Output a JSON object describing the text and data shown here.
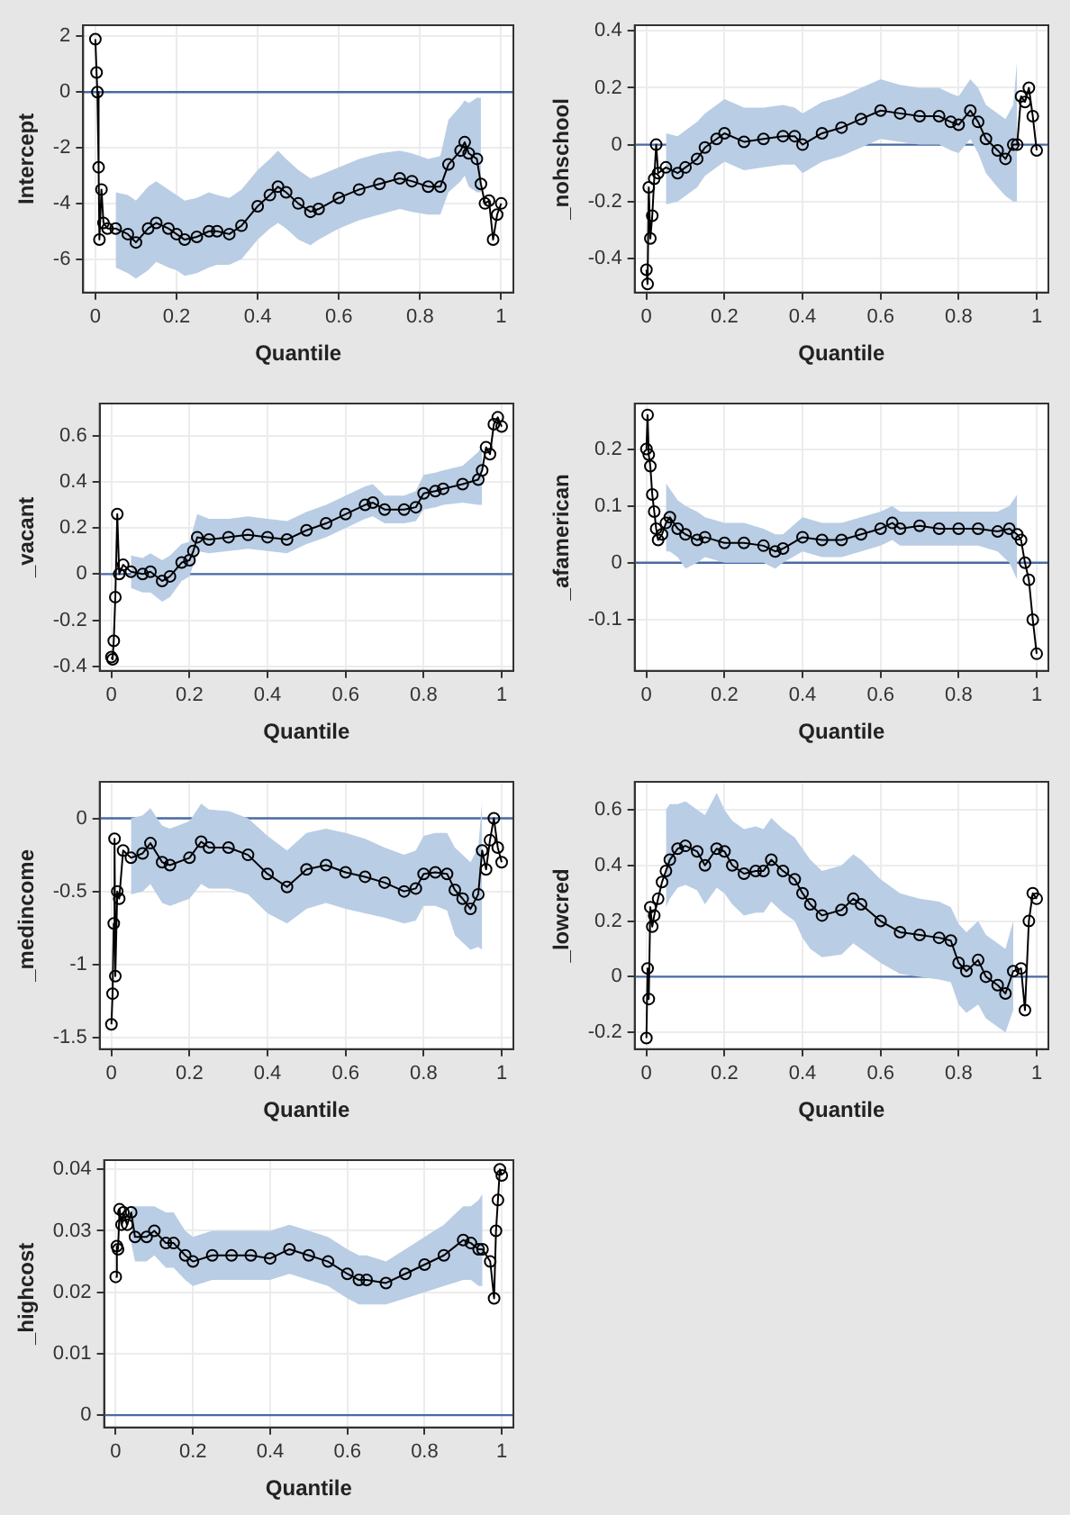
{
  "chart_data": [
    {
      "type": "line",
      "xlabel": "Quantile",
      "ylabel": "Intercept",
      "xlim": [
        -0.03,
        1.03
      ],
      "xticks": [
        0,
        0.2,
        0.4,
        0.6,
        0.8,
        1
      ],
      "ylim": [
        -7.2,
        2.4
      ],
      "yticks": [
        -6,
        -4,
        -2,
        0,
        2
      ],
      "grid": true,
      "marker": "circle",
      "line_style": "solid",
      "ref_lines": [
        {
          "axis": "y",
          "value": 0,
          "color": "#4a6aa5"
        }
      ],
      "x": [
        0,
        0.003,
        0.005,
        0.008,
        0.01,
        0.015,
        0.02,
        0.03,
        0.05,
        0.08,
        0.1,
        0.13,
        0.15,
        0.18,
        0.2,
        0.22,
        0.25,
        0.28,
        0.3,
        0.33,
        0.36,
        0.4,
        0.43,
        0.45,
        0.47,
        0.5,
        0.53,
        0.55,
        0.6,
        0.65,
        0.7,
        0.75,
        0.78,
        0.82,
        0.85,
        0.87,
        0.9,
        0.91,
        0.92,
        0.94,
        0.95,
        0.96,
        0.97,
        0.98,
        0.99,
        1.0
      ],
      "series": [
        {
          "color": "#000000",
          "values": [
            1.9,
            0.7,
            0,
            -2.7,
            -5.3,
            -3.5,
            -4.7,
            -4.9,
            -4.9,
            -5.1,
            -5.4,
            -4.9,
            -4.7,
            -4.9,
            -5.1,
            -5.3,
            -5.2,
            -5.0,
            -5.0,
            -5.1,
            -4.8,
            -4.1,
            -3.7,
            -3.4,
            -3.6,
            -4.0,
            -4.3,
            -4.2,
            -3.8,
            -3.5,
            -3.3,
            -3.1,
            -3.2,
            -3.4,
            -3.4,
            -2.6,
            -2.1,
            -1.8,
            -2.2,
            -2.4,
            -3.3,
            -4.0,
            -3.9,
            -5.3,
            -4.4,
            -4.0
          ],
          "lower": [
            null,
            null,
            null,
            null,
            null,
            null,
            null,
            null,
            -6.3,
            -6.5,
            -6.7,
            -6.4,
            -6.1,
            -6.3,
            -6.4,
            -6.6,
            -6.5,
            -6.3,
            -6.2,
            -6.2,
            -6.0,
            -5.3,
            -4.9,
            -4.7,
            -4.9,
            -5.3,
            -5.5,
            -5.3,
            -4.9,
            -4.6,
            -4.4,
            -4.2,
            -4.3,
            -4.4,
            -4.4,
            -3.6,
            -3.2,
            -3.0,
            -3.4,
            -3.6,
            -3.6,
            null,
            null,
            null,
            null,
            null
          ],
          "upper": [
            null,
            null,
            null,
            null,
            null,
            null,
            null,
            null,
            -3.6,
            -3.7,
            -3.9,
            -3.4,
            -3.2,
            -3.5,
            -3.7,
            -3.9,
            -3.8,
            -3.6,
            -3.7,
            -3.8,
            -3.5,
            -2.8,
            -2.4,
            -2.1,
            -2.4,
            -2.8,
            -3.1,
            -3.0,
            -2.7,
            -2.4,
            -2.2,
            -2.1,
            -2.2,
            -2.4,
            -2.3,
            -1.0,
            -0.5,
            -0.3,
            -0.4,
            -0.2,
            -0.2,
            null,
            null,
            null,
            null,
            null
          ]
        }
      ]
    },
    {
      "type": "line",
      "xlabel": "Quantile",
      "ylabel": "_nohschool",
      "xlim": [
        -0.03,
        1.03
      ],
      "xticks": [
        0,
        0.2,
        0.4,
        0.6,
        0.8,
        1
      ],
      "ylim": [
        -0.52,
        0.42
      ],
      "yticks": [
        -0.4,
        -0.2,
        0,
        0.2,
        0.4
      ],
      "grid": true,
      "marker": "circle",
      "line_style": "solid",
      "ref_lines": [
        {
          "axis": "y",
          "value": 0,
          "color": "#4a6aa5"
        }
      ],
      "x": [
        0,
        0.003,
        0.006,
        0.01,
        0.015,
        0.02,
        0.025,
        0.03,
        0.05,
        0.08,
        0.1,
        0.13,
        0.15,
        0.18,
        0.2,
        0.25,
        0.3,
        0.35,
        0.38,
        0.4,
        0.45,
        0.5,
        0.55,
        0.6,
        0.65,
        0.7,
        0.75,
        0.78,
        0.8,
        0.83,
        0.85,
        0.87,
        0.9,
        0.92,
        0.94,
        0.95,
        0.96,
        0.97,
        0.98,
        0.99,
        1.0
      ],
      "series": [
        {
          "color": "#000000",
          "values": [
            -0.44,
            -0.49,
            -0.15,
            -0.33,
            -0.25,
            -0.12,
            0.0,
            -0.1,
            -0.08,
            -0.1,
            -0.08,
            -0.05,
            -0.01,
            0.02,
            0.04,
            0.01,
            0.02,
            0.03,
            0.03,
            0.0,
            0.04,
            0.06,
            0.09,
            0.12,
            0.11,
            0.1,
            0.1,
            0.08,
            0.07,
            0.12,
            0.08,
            0.02,
            -0.02,
            -0.05,
            0.0,
            0.0,
            0.17,
            0.15,
            0.2,
            0.1,
            -0.02
          ],
          "lower": [
            null,
            null,
            null,
            null,
            null,
            null,
            null,
            null,
            -0.21,
            -0.2,
            -0.18,
            -0.15,
            -0.11,
            -0.08,
            -0.06,
            -0.09,
            -0.08,
            -0.07,
            -0.07,
            -0.1,
            -0.06,
            -0.04,
            -0.01,
            0.02,
            0.01,
            0.0,
            0.0,
            -0.02,
            -0.03,
            0.02,
            -0.03,
            -0.1,
            -0.15,
            -0.18,
            -0.2,
            -0.2,
            null,
            null,
            null,
            null,
            null
          ],
          "upper": [
            null,
            null,
            null,
            null,
            null,
            null,
            null,
            null,
            0.04,
            0.03,
            0.05,
            0.08,
            0.11,
            0.14,
            0.16,
            0.13,
            0.13,
            0.14,
            0.13,
            0.11,
            0.15,
            0.17,
            0.2,
            0.23,
            0.21,
            0.2,
            0.2,
            0.18,
            0.17,
            0.23,
            0.2,
            0.14,
            0.11,
            0.09,
            0.14,
            0.3,
            null,
            null,
            null,
            null,
            null
          ]
        }
      ]
    },
    {
      "type": "line",
      "xlabel": "Quantile",
      "ylabel": "_vacant",
      "xlim": [
        -0.03,
        1.03
      ],
      "xticks": [
        0,
        0.2,
        0.4,
        0.6,
        0.8,
        1
      ],
      "ylim": [
        -0.42,
        0.74
      ],
      "yticks": [
        -0.4,
        -0.2,
        0,
        0.2,
        0.4,
        0.6
      ],
      "grid": true,
      "marker": "circle",
      "line_style": "solid",
      "ref_lines": [
        {
          "axis": "y",
          "value": 0,
          "color": "#4a6aa5"
        }
      ],
      "x": [
        0,
        0.003,
        0.006,
        0.01,
        0.015,
        0.02,
        0.03,
        0.05,
        0.08,
        0.1,
        0.13,
        0.15,
        0.18,
        0.2,
        0.21,
        0.22,
        0.25,
        0.3,
        0.35,
        0.4,
        0.45,
        0.5,
        0.55,
        0.6,
        0.65,
        0.67,
        0.7,
        0.75,
        0.78,
        0.8,
        0.83,
        0.85,
        0.9,
        0.94,
        0.95,
        0.96,
        0.97,
        0.98,
        0.99,
        1.0
      ],
      "series": [
        {
          "color": "#000000",
          "values": [
            -0.36,
            -0.37,
            -0.29,
            -0.1,
            0.26,
            0.0,
            0.04,
            0.01,
            0.0,
            0.01,
            -0.03,
            -0.01,
            0.05,
            0.06,
            0.1,
            0.16,
            0.15,
            0.16,
            0.17,
            0.16,
            0.15,
            0.19,
            0.22,
            0.26,
            0.3,
            0.31,
            0.28,
            0.28,
            0.29,
            0.35,
            0.36,
            0.37,
            0.39,
            0.41,
            0.45,
            0.55,
            0.52,
            0.65,
            0.68,
            0.64
          ],
          "lower": [
            null,
            null,
            null,
            null,
            null,
            null,
            null,
            -0.06,
            -0.08,
            -0.08,
            -0.12,
            -0.1,
            -0.03,
            -0.01,
            0.04,
            0.1,
            0.09,
            0.1,
            0.11,
            0.1,
            0.09,
            0.13,
            0.16,
            0.2,
            0.24,
            0.25,
            0.22,
            0.22,
            0.23,
            0.28,
            0.29,
            0.3,
            0.31,
            0.3,
            0.3,
            null,
            null,
            null,
            null,
            null
          ],
          "upper": [
            null,
            null,
            null,
            null,
            null,
            null,
            null,
            0.08,
            0.07,
            0.09,
            0.06,
            0.08,
            0.13,
            0.14,
            0.2,
            0.26,
            0.24,
            0.24,
            0.25,
            0.24,
            0.23,
            0.27,
            0.3,
            0.34,
            0.38,
            0.39,
            0.34,
            0.34,
            0.36,
            0.43,
            0.44,
            0.45,
            0.47,
            0.53,
            0.56,
            null,
            null,
            null,
            null,
            null
          ]
        }
      ]
    },
    {
      "type": "line",
      "xlabel": "Quantile",
      "ylabel": "_afamerican",
      "xlim": [
        -0.03,
        1.03
      ],
      "xticks": [
        0,
        0.2,
        0.4,
        0.6,
        0.8,
        1
      ],
      "ylim": [
        -0.19,
        0.28
      ],
      "yticks": [
        -0.1,
        0,
        0.1,
        0.2
      ],
      "grid": true,
      "marker": "circle",
      "line_style": "solid",
      "ref_lines": [
        {
          "axis": "y",
          "value": 0,
          "color": "#4a6aa5"
        }
      ],
      "x": [
        0,
        0.003,
        0.006,
        0.01,
        0.015,
        0.02,
        0.025,
        0.03,
        0.04,
        0.05,
        0.06,
        0.08,
        0.1,
        0.13,
        0.15,
        0.2,
        0.25,
        0.3,
        0.33,
        0.35,
        0.4,
        0.45,
        0.5,
        0.55,
        0.6,
        0.63,
        0.65,
        0.7,
        0.75,
        0.8,
        0.85,
        0.9,
        0.93,
        0.95,
        0.96,
        0.97,
        0.98,
        0.99,
        1.0
      ],
      "series": [
        {
          "color": "#000000",
          "values": [
            0.2,
            0.26,
            0.19,
            0.17,
            0.12,
            0.09,
            0.06,
            0.04,
            0.05,
            0.07,
            0.08,
            0.06,
            0.05,
            0.04,
            0.045,
            0.035,
            0.035,
            0.03,
            0.02,
            0.025,
            0.045,
            0.04,
            0.04,
            0.05,
            0.06,
            0.07,
            0.06,
            0.065,
            0.06,
            0.06,
            0.06,
            0.055,
            0.06,
            0.05,
            0.04,
            0.0,
            -0.03,
            -0.1,
            -0.16
          ],
          "lower": [
            null,
            null,
            null,
            null,
            null,
            null,
            null,
            null,
            null,
            0.02,
            0.02,
            0.01,
            -0.01,
            0.0,
            0.01,
            0.0,
            0.0,
            0.0,
            -0.01,
            0.0,
            0.02,
            0.01,
            0.01,
            0.02,
            0.03,
            0.04,
            0.03,
            0.03,
            0.03,
            0.03,
            0.03,
            0.02,
            0.0,
            -0.03,
            null,
            null,
            null,
            null,
            null
          ],
          "upper": [
            null,
            null,
            null,
            null,
            null,
            null,
            null,
            null,
            null,
            0.14,
            0.13,
            0.11,
            0.1,
            0.09,
            0.08,
            0.07,
            0.07,
            0.06,
            0.05,
            0.05,
            0.08,
            0.07,
            0.07,
            0.08,
            0.09,
            0.1,
            0.09,
            0.09,
            0.09,
            0.09,
            0.09,
            0.09,
            0.1,
            0.12,
            null,
            null,
            null,
            null,
            null
          ]
        }
      ]
    },
    {
      "type": "line",
      "xlabel": "Quantile",
      "ylabel": "_medincome",
      "xlim": [
        -0.03,
        1.03
      ],
      "xticks": [
        0,
        0.2,
        0.4,
        0.6,
        0.8,
        1
      ],
      "ylim": [
        -1.58,
        0.25
      ],
      "yticks": [
        -1.5,
        -1,
        -0.5,
        0
      ],
      "grid": true,
      "marker": "circle",
      "line_style": "solid",
      "ref_lines": [
        {
          "axis": "y",
          "value": 0,
          "color": "#4a6aa5"
        }
      ],
      "x": [
        0,
        0.003,
        0.006,
        0.008,
        0.01,
        0.015,
        0.02,
        0.03,
        0.05,
        0.08,
        0.1,
        0.13,
        0.15,
        0.2,
        0.23,
        0.25,
        0.3,
        0.35,
        0.4,
        0.45,
        0.5,
        0.55,
        0.6,
        0.65,
        0.7,
        0.75,
        0.78,
        0.8,
        0.83,
        0.86,
        0.88,
        0.9,
        0.92,
        0.94,
        0.95,
        0.96,
        0.97,
        0.98,
        0.99,
        1.0
      ],
      "series": [
        {
          "color": "#000000",
          "values": [
            -1.41,
            -1.2,
            -0.72,
            -0.14,
            -1.08,
            -0.5,
            -0.55,
            -0.22,
            -0.27,
            -0.24,
            -0.17,
            -0.3,
            -0.32,
            -0.27,
            -0.16,
            -0.2,
            -0.2,
            -0.25,
            -0.38,
            -0.47,
            -0.35,
            -0.32,
            -0.37,
            -0.4,
            -0.44,
            -0.5,
            -0.48,
            -0.38,
            -0.37,
            -0.38,
            -0.49,
            -0.55,
            -0.62,
            -0.52,
            -0.22,
            -0.35,
            -0.15,
            0.0,
            -0.2,
            -0.3
          ],
          "lower": [
            null,
            null,
            null,
            null,
            null,
            null,
            null,
            null,
            -0.52,
            -0.5,
            -0.45,
            -0.58,
            -0.6,
            -0.55,
            -0.45,
            -0.48,
            -0.48,
            -0.52,
            -0.65,
            -0.72,
            -0.62,
            -0.58,
            -0.62,
            -0.65,
            -0.68,
            -0.72,
            -0.7,
            -0.6,
            -0.6,
            -0.63,
            -0.8,
            -0.85,
            -0.9,
            -0.88,
            -0.9,
            null,
            null,
            null,
            null,
            null
          ],
          "upper": [
            null,
            null,
            null,
            null,
            null,
            null,
            null,
            null,
            0.0,
            0.02,
            0.07,
            -0.05,
            -0.07,
            -0.02,
            0.1,
            0.06,
            0.05,
            0.0,
            -0.12,
            -0.22,
            -0.1,
            -0.07,
            -0.1,
            -0.14,
            -0.2,
            -0.25,
            -0.22,
            -0.12,
            -0.1,
            -0.1,
            -0.2,
            -0.25,
            -0.3,
            -0.2,
            0.12,
            null,
            null,
            null,
            null,
            null
          ]
        }
      ]
    },
    {
      "type": "line",
      "xlabel": "Quantile",
      "ylabel": "_lowcred",
      "xlim": [
        -0.03,
        1.03
      ],
      "xticks": [
        0,
        0.2,
        0.4,
        0.6,
        0.8,
        1
      ],
      "ylim": [
        -0.26,
        0.7
      ],
      "yticks": [
        -0.2,
        0,
        0.2,
        0.4,
        0.6
      ],
      "grid": true,
      "marker": "circle",
      "line_style": "solid",
      "ref_lines": [
        {
          "axis": "y",
          "value": 0,
          "color": "#4a6aa5"
        }
      ],
      "x": [
        0,
        0.003,
        0.006,
        0.01,
        0.015,
        0.02,
        0.03,
        0.04,
        0.05,
        0.06,
        0.08,
        0.1,
        0.13,
        0.15,
        0.18,
        0.2,
        0.22,
        0.25,
        0.28,
        0.3,
        0.32,
        0.35,
        0.38,
        0.4,
        0.42,
        0.45,
        0.5,
        0.53,
        0.55,
        0.6,
        0.65,
        0.7,
        0.75,
        0.78,
        0.8,
        0.82,
        0.85,
        0.87,
        0.9,
        0.92,
        0.94,
        0.96,
        0.97,
        0.98,
        0.99,
        1.0
      ],
      "series": [
        {
          "color": "#000000",
          "values": [
            -0.22,
            0.03,
            -0.08,
            0.25,
            0.18,
            0.22,
            0.28,
            0.34,
            0.38,
            0.42,
            0.46,
            0.47,
            0.45,
            0.4,
            0.46,
            0.45,
            0.4,
            0.37,
            0.38,
            0.38,
            0.42,
            0.38,
            0.35,
            0.3,
            0.26,
            0.22,
            0.24,
            0.28,
            0.26,
            0.2,
            0.16,
            0.15,
            0.14,
            0.13,
            0.05,
            0.02,
            0.06,
            0.0,
            -0.03,
            -0.06,
            0.02,
            0.03,
            -0.12,
            0.2,
            0.3,
            0.28
          ],
          "lower": [
            null,
            null,
            null,
            null,
            null,
            null,
            null,
            null,
            0.25,
            0.28,
            0.32,
            0.33,
            0.31,
            0.26,
            0.32,
            0.3,
            0.26,
            0.22,
            0.23,
            0.23,
            0.27,
            0.23,
            0.2,
            0.14,
            0.1,
            0.07,
            0.08,
            0.12,
            0.1,
            0.05,
            0.01,
            0.0,
            -0.01,
            -0.02,
            -0.1,
            -0.13,
            -0.1,
            -0.15,
            -0.18,
            -0.2,
            -0.12,
            null,
            null,
            null,
            null,
            null
          ],
          "upper": [
            null,
            null,
            null,
            null,
            null,
            null,
            null,
            null,
            0.6,
            0.62,
            0.62,
            0.63,
            0.6,
            0.58,
            0.66,
            0.6,
            0.56,
            0.53,
            0.54,
            0.53,
            0.57,
            0.53,
            0.5,
            0.46,
            0.42,
            0.38,
            0.4,
            0.44,
            0.42,
            0.35,
            0.3,
            0.28,
            0.27,
            0.25,
            0.19,
            0.16,
            0.2,
            0.15,
            0.12,
            0.1,
            0.2,
            null,
            null,
            null,
            null,
            null
          ]
        }
      ]
    },
    {
      "type": "line",
      "xlabel": "Quantile",
      "ylabel": "_highcost",
      "xlim": [
        -0.03,
        1.03
      ],
      "xticks": [
        0,
        0.2,
        0.4,
        0.6,
        0.8,
        1
      ],
      "ylim": [
        -0.002,
        0.0415
      ],
      "yticks": [
        0,
        0.01,
        0.02,
        0.03,
        0.04
      ],
      "grid": true,
      "marker": "circle",
      "line_style": "solid",
      "ref_lines": [
        {
          "axis": "y",
          "value": 0,
          "color": "#4a6aa5"
        }
      ],
      "x": [
        0,
        0.003,
        0.006,
        0.01,
        0.015,
        0.02,
        0.03,
        0.04,
        0.05,
        0.08,
        0.1,
        0.13,
        0.15,
        0.18,
        0.2,
        0.25,
        0.3,
        0.35,
        0.4,
        0.45,
        0.5,
        0.55,
        0.6,
        0.63,
        0.65,
        0.7,
        0.75,
        0.8,
        0.85,
        0.9,
        0.92,
        0.94,
        0.95,
        0.97,
        0.98,
        0.985,
        0.99,
        0.995,
        1.0
      ],
      "series": [
        {
          "color": "#000000",
          "values": [
            0.0225,
            0.0275,
            0.027,
            0.0335,
            0.031,
            0.033,
            0.031,
            0.033,
            0.029,
            0.029,
            0.03,
            0.028,
            0.028,
            0.026,
            0.025,
            0.026,
            0.026,
            0.026,
            0.0255,
            0.027,
            0.026,
            0.025,
            0.023,
            0.022,
            0.022,
            0.0215,
            0.023,
            0.0245,
            0.026,
            0.0285,
            0.028,
            0.027,
            0.027,
            0.025,
            0.019,
            0.03,
            0.035,
            0.04,
            0.039
          ],
          "lower": [
            null,
            null,
            null,
            null,
            null,
            null,
            null,
            0.028,
            0.025,
            0.025,
            0.026,
            0.024,
            0.024,
            0.022,
            0.021,
            0.022,
            0.022,
            0.022,
            0.022,
            0.023,
            0.022,
            0.021,
            0.019,
            0.018,
            0.018,
            0.018,
            0.019,
            0.02,
            0.021,
            0.022,
            0.022,
            0.021,
            0.021,
            null,
            null,
            null,
            null,
            null,
            null
          ],
          "upper": [
            null,
            null,
            null,
            null,
            null,
            null,
            null,
            0.034,
            0.034,
            0.034,
            0.034,
            0.033,
            0.033,
            0.03,
            0.029,
            0.03,
            0.03,
            0.03,
            0.03,
            0.031,
            0.03,
            0.029,
            0.027,
            0.026,
            0.026,
            0.025,
            0.027,
            0.029,
            0.031,
            0.034,
            0.034,
            0.035,
            0.036,
            null,
            null,
            null,
            null,
            null,
            null
          ]
        }
      ]
    }
  ]
}
